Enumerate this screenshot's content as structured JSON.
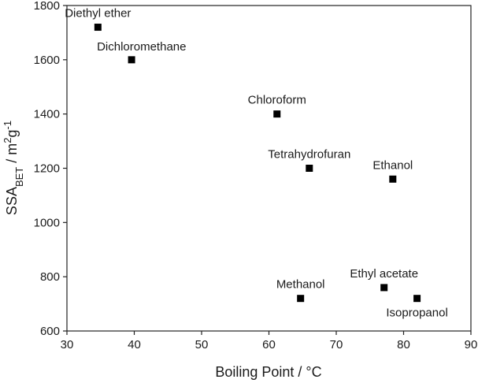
{
  "chart_data": {
    "type": "scatter",
    "title": "",
    "xlabel": "Boiling Point / °C",
    "ylabel": {
      "base": "SSA",
      "sub": "BET",
      "rest1": " / m",
      "sup1": "2",
      "rest2": "g",
      "sup2": "-1"
    },
    "xlim": [
      30,
      90
    ],
    "ylim": [
      600,
      1800
    ],
    "xticks": [
      30,
      40,
      50,
      60,
      70,
      80,
      90
    ],
    "yticks": [
      600,
      800,
      1000,
      1200,
      1400,
      1600,
      1800
    ],
    "grid": false,
    "marker": "square",
    "marker_color": "#000000",
    "points": [
      {
        "label": "Diethyl ether",
        "x": 34.6,
        "y": 1720,
        "label_pos": "above"
      },
      {
        "label": "Dichloromethane",
        "x": 39.6,
        "y": 1600,
        "label_pos": "above-right"
      },
      {
        "label": "Chloroform",
        "x": 61.2,
        "y": 1400,
        "label_pos": "above"
      },
      {
        "label": "Tetrahydrofuran",
        "x": 66.0,
        "y": 1200,
        "label_pos": "above"
      },
      {
        "label": "Ethanol",
        "x": 78.4,
        "y": 1160,
        "label_pos": "above"
      },
      {
        "label": "Ethyl acetate",
        "x": 77.1,
        "y": 760,
        "label_pos": "above"
      },
      {
        "label": "Methanol",
        "x": 64.7,
        "y": 720,
        "label_pos": "above"
      },
      {
        "label": "Isopropanol",
        "x": 82.0,
        "y": 720,
        "label_pos": "below"
      }
    ]
  }
}
